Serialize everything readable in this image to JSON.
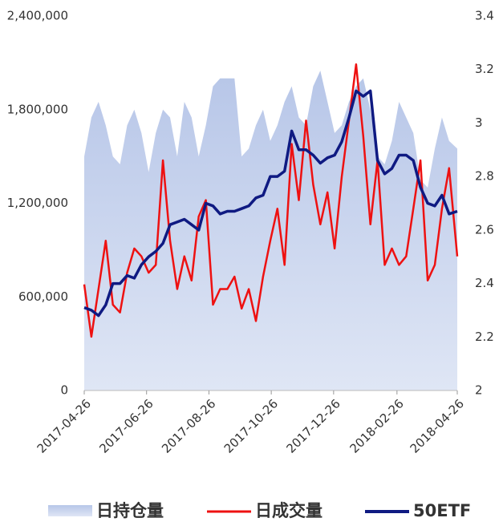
{
  "chart_data": {
    "type": "line",
    "x": [
      "2017-04-26",
      "2017-05-03",
      "2017-05-10",
      "2017-05-17",
      "2017-05-24",
      "2017-05-31",
      "2017-06-07",
      "2017-06-14",
      "2017-06-21",
      "2017-06-28",
      "2017-07-05",
      "2017-07-12",
      "2017-07-19",
      "2017-07-26",
      "2017-08-02",
      "2017-08-09",
      "2017-08-16",
      "2017-08-23",
      "2017-08-30",
      "2017-09-06",
      "2017-09-13",
      "2017-09-20",
      "2017-09-27",
      "2017-10-04",
      "2017-10-11",
      "2017-10-18",
      "2017-10-25",
      "2017-11-01",
      "2017-11-08",
      "2017-11-15",
      "2017-11-22",
      "2017-11-29",
      "2017-12-06",
      "2017-12-13",
      "2017-12-20",
      "2017-12-27",
      "2018-01-03",
      "2018-01-10",
      "2018-01-17",
      "2018-01-24",
      "2018-01-31",
      "2018-02-07",
      "2018-02-14",
      "2018-02-21",
      "2018-02-28",
      "2018-03-07",
      "2018-03-14",
      "2018-03-21",
      "2018-03-28",
      "2018-04-04",
      "2018-04-11",
      "2018-04-18",
      "2018-04-26"
    ],
    "series": [
      {
        "name": "日持仓量",
        "kind": "area",
        "color": "#c3cfeb",
        "axis": "y",
        "values": [
          1500000,
          1750000,
          1850000,
          1700000,
          1500000,
          1450000,
          1700000,
          1800000,
          1650000,
          1400000,
          1650000,
          1800000,
          1750000,
          1500000,
          1850000,
          1750000,
          1500000,
          1700000,
          1950000,
          2000000,
          2000000,
          2000000,
          1500000,
          1550000,
          1700000,
          1800000,
          1600000,
          1700000,
          1850000,
          1950000,
          1750000,
          1700000,
          1950000,
          2050000,
          1850000,
          1650000,
          1700000,
          1850000,
          1950000,
          2000000,
          1800000,
          1500000,
          1450000,
          1600000,
          1850000,
          1750000,
          1650000,
          1350000,
          1300000,
          1550000,
          1750000,
          1600000,
          1550000
        ]
      },
      {
        "name": "日成交量",
        "kind": "line",
        "color": "#ee1111",
        "axis": "y",
        "values": [
          680000,
          345000,
          650000,
          960000,
          550000,
          500000,
          755000,
          910000,
          860000,
          755000,
          805000,
          1475000,
          960000,
          650000,
          860000,
          705000,
          1115000,
          1220000,
          550000,
          650000,
          650000,
          730000,
          525000,
          650000,
          445000,
          730000,
          960000,
          1165000,
          805000,
          1580000,
          1220000,
          1730000,
          1320000,
          1065000,
          1270000,
          910000,
          1370000,
          1730000,
          2090000,
          1630000,
          1065000,
          1475000,
          805000,
          910000,
          805000,
          860000,
          1165000,
          1475000,
          705000,
          805000,
          1165000,
          1425000,
          860000
        ]
      },
      {
        "name": "50ETF",
        "kind": "line",
        "color": "#0f1a82",
        "axis": "y2",
        "values": [
          2.31,
          2.3,
          2.28,
          2.32,
          2.4,
          2.4,
          2.43,
          2.42,
          2.47,
          2.5,
          2.52,
          2.55,
          2.62,
          2.63,
          2.64,
          2.62,
          2.6,
          2.7,
          2.69,
          2.66,
          2.67,
          2.67,
          2.68,
          2.69,
          2.72,
          2.73,
          2.8,
          2.8,
          2.82,
          2.97,
          2.9,
          2.9,
          2.88,
          2.85,
          2.87,
          2.88,
          2.93,
          3.02,
          3.12,
          3.1,
          3.12,
          2.86,
          2.81,
          2.83,
          2.88,
          2.88,
          2.86,
          2.76,
          2.7,
          2.69,
          2.73,
          2.66,
          2.67
        ]
      }
    ],
    "xlim": [
      "2017-04-26",
      "2018-04-26"
    ],
    "xticks": [
      "2017-04-26",
      "2017-06-26",
      "2017-08-26",
      "2017-10-26",
      "2017-12-26",
      "2018-02-26",
      "2018-04-26"
    ],
    "ylim": [
      0,
      2400000
    ],
    "yticks": [
      0,
      {
        "value": 600000,
        "label": "600,000"
      },
      {
        "value": 1200000,
        "label": "1,200,000"
      },
      {
        "value": 1800000,
        "label": "1,800,000"
      },
      {
        "value": 2400000,
        "label": "2,400,000"
      }
    ],
    "y2lim": [
      2,
      3.4
    ],
    "y2ticks": [
      2,
      2.2,
      2.4,
      2.6,
      2.8,
      3,
      3.2,
      3.4
    ],
    "legend": "bottom"
  }
}
